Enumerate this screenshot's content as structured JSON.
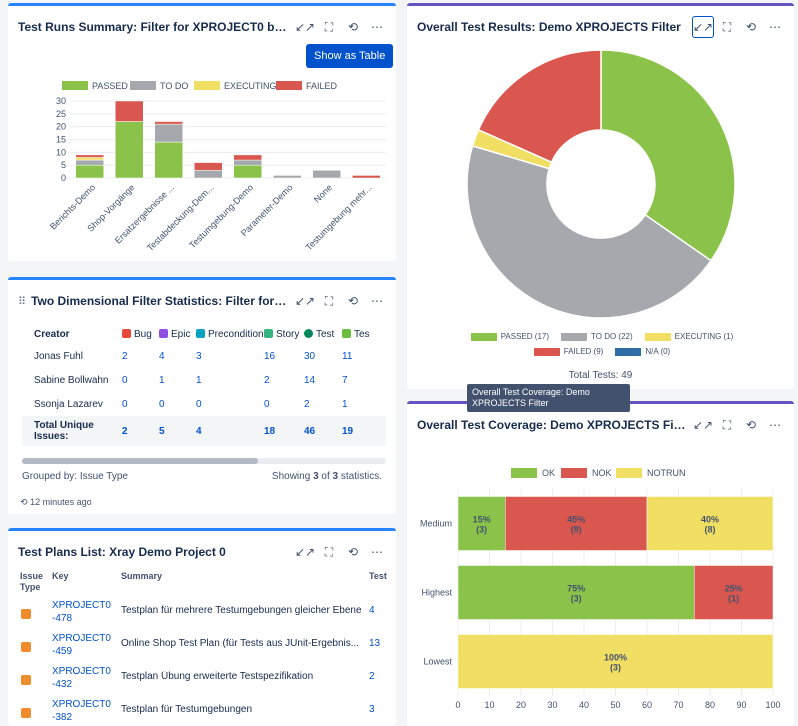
{
  "runs": {
    "title": "Test Runs Summary: Filter for XPROJECT0 board...",
    "show_table": "Show as Table",
    "legend": [
      "PASSED",
      "TO DO",
      "EXECUTING",
      "FAILED"
    ],
    "colors": {
      "passed": "#8bc34a",
      "todo": "#a5a8ad",
      "executing": "#f1df63",
      "failed": "#d9574e"
    }
  },
  "chart_data": [
    {
      "type": "bar",
      "stacked": true,
      "categories": [
        "Berichts-Demo",
        "Shop-Vorgänge",
        "Ersatzergebnisse ...",
        "Testabdeckung-Dem...",
        "Testumgebung-Demo",
        "Parameter-Demo",
        "None",
        "Testumgebung mehr..."
      ],
      "series": [
        {
          "name": "PASSED",
          "values": [
            5,
            22,
            14,
            0,
            5,
            0,
            0,
            0
          ]
        },
        {
          "name": "TO DO",
          "values": [
            2,
            0,
            7,
            3,
            2,
            1,
            3,
            0
          ]
        },
        {
          "name": "EXECUTING",
          "values": [
            1,
            0,
            0,
            0,
            0,
            0,
            0,
            0
          ]
        },
        {
          "name": "FAILED",
          "values": [
            1,
            8,
            1,
            3,
            2,
            0,
            0,
            1
          ]
        }
      ],
      "yticks": [
        0,
        5,
        10,
        15,
        20,
        25,
        30
      ],
      "ylim": [
        0,
        30
      ],
      "legend_position": "top"
    },
    {
      "type": "pie",
      "donut": true,
      "labels": [
        "PASSED",
        "TO DO",
        "EXECUTING",
        "FAILED",
        "N/A"
      ],
      "values": [
        17,
        22,
        1,
        9,
        0
      ],
      "legend_labels": [
        "PASSED (17)",
        "TO DO (22)",
        "EXECUTING (1)",
        "FAILED (9)",
        "N/A (0)"
      ],
      "colors": [
        "#8bc34a",
        "#a5a8ad",
        "#f1df63",
        "#d9574e",
        "#2d6ea8"
      ],
      "total_label": "Total Tests: 49",
      "legend_position": "bottom"
    },
    {
      "type": "bar",
      "orientation": "horizontal",
      "stacked": true,
      "percent": true,
      "categories": [
        "Medium",
        "Highest",
        "Lowest"
      ],
      "series": [
        {
          "name": "OK",
          "values": [
            15,
            75,
            0
          ],
          "counts": [
            3,
            3,
            0
          ]
        },
        {
          "name": "NOK",
          "values": [
            45,
            25,
            0
          ],
          "counts": [
            9,
            1,
            0
          ]
        },
        {
          "name": "NOTRUN",
          "values": [
            40,
            0,
            100
          ],
          "counts": [
            8,
            0,
            3
          ]
        }
      ],
      "xticks": [
        0,
        10,
        20,
        30,
        40,
        50,
        60,
        70,
        80,
        90,
        100
      ],
      "xlim": [
        0,
        100
      ],
      "legend_position": "top"
    }
  ],
  "results": {
    "title": "Overall Test Results: Demo XPROJECTS Filter",
    "legend": [
      "PASSED (17)",
      "TO DO (22)",
      "EXECUTING (1)",
      "FAILED (9)",
      "N/A (0)"
    ],
    "total": "Total Tests: 49"
  },
  "tooltip": "Overall Test Coverage: Demo XPROJECTS Filter",
  "coverage": {
    "title": "Overall Test Coverage: Demo XPROJECTS Filter",
    "legend": [
      "OK",
      "NOK",
      "NOTRUN"
    ]
  },
  "twodim": {
    "title": "Two Dimensional Filter Statistics: Filter for XPRO...",
    "columns": [
      "Creator",
      "Bug",
      "Epic",
      "Precondition",
      "Story",
      "Test",
      "Tes"
    ],
    "col_colors": [
      "",
      "#e5493a",
      "#904ee2",
      "#00a3bf",
      "#36b37e",
      "#00875a",
      "#6bbf3f"
    ],
    "rows": [
      [
        "Jonas Fuhl",
        "2",
        "4",
        "3",
        "16",
        "30",
        "11"
      ],
      [
        "Sabine Bollwahn",
        "0",
        "1",
        "1",
        "2",
        "14",
        "7"
      ],
      [
        "Ssonja Lazarev",
        "0",
        "0",
        "0",
        "0",
        "2",
        "1"
      ]
    ],
    "total": [
      "Total Unique Issues:",
      "2",
      "5",
      "4",
      "18",
      "46",
      "19"
    ],
    "grouped": "Grouped by: Issue Type",
    "showing_pre": "Showing ",
    "showing_n": "3",
    "showing_mid": " of ",
    "showing_m": "3",
    "showing_post": " statistics.",
    "updated": "12 minutes ago"
  },
  "plans": {
    "title": "Test Plans List: Xray Demo Project 0",
    "head": [
      "Issue Type",
      "Key",
      "Summary",
      "Test Cou"
    ],
    "rows": [
      {
        "key": "XPROJECT0-478",
        "summary": "Testplan für mehrere Testumgebungen gleicher Ebene",
        "count": "4"
      },
      {
        "key": "XPROJECT0-459",
        "summary": "Online Shop Test Plan (für Tests aus JUnit-Ergebnis...",
        "count": "13"
      },
      {
        "key": "XPROJECT0-432",
        "summary": "Testplan Übung erweiterte Testspezifikation",
        "count": "2"
      },
      {
        "key": "XPROJECT0-382",
        "summary": "Testplan für Testumgebungen",
        "count": "3"
      }
    ]
  }
}
